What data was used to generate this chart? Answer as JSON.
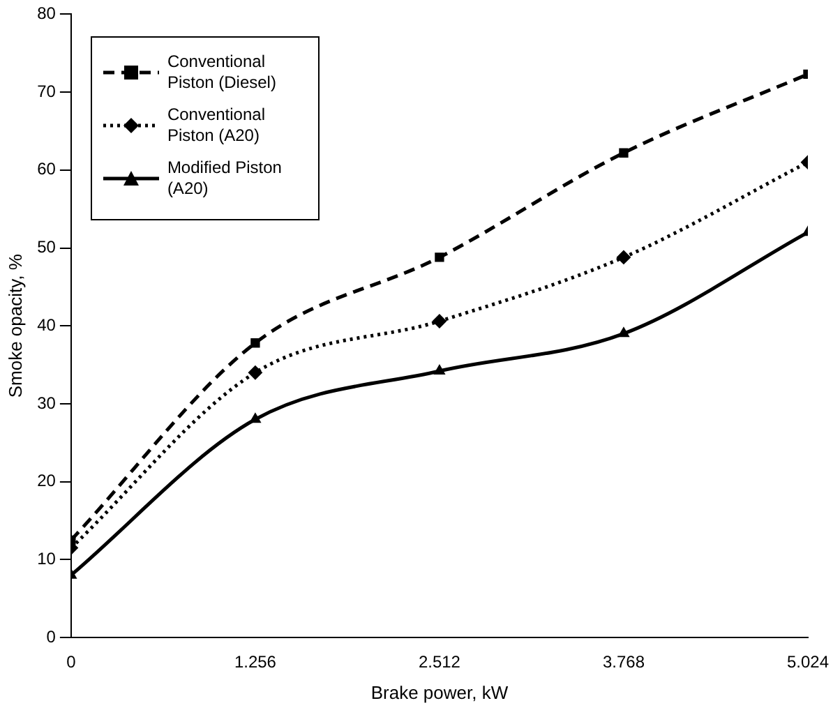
{
  "chart_data": {
    "type": "line",
    "xlabel": "Brake power, kW",
    "ylabel": "Smoke opacity, %",
    "x": [
      0,
      1.256,
      2.512,
      3.768,
      5.024
    ],
    "xlim": [
      0,
      5.024
    ],
    "xticks": [
      0,
      1.256,
      2.512,
      3.768,
      5.024
    ],
    "ylim": [
      0,
      80
    ],
    "yticks": [
      0,
      10,
      20,
      30,
      40,
      50,
      60,
      70,
      80
    ],
    "grid": false,
    "legend": "top left",
    "series": [
      {
        "name": "Conventional Piston (Diesel)",
        "color": "#000000",
        "marker": "square",
        "line_style": "dashed",
        "values": [
          12.5,
          37.8,
          48.8,
          62.2,
          72.3
        ]
      },
      {
        "name": "Conventional Piston (A20)",
        "color": "#000000",
        "marker": "diamond",
        "line_style": "dotted",
        "values": [
          11.5,
          34,
          40.6,
          48.8,
          61
        ]
      },
      {
        "name": "Modified Piston (A20)",
        "color": "#000000",
        "marker": "triangle",
        "line_style": "solid",
        "values": [
          8,
          28,
          34.2,
          39,
          52
        ]
      }
    ]
  }
}
